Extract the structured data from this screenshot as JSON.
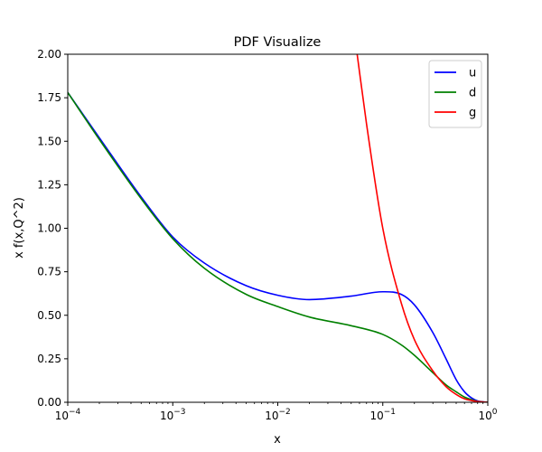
{
  "chart_data": {
    "type": "line",
    "title": "PDF Visualize",
    "xlabel": "x",
    "ylabel": "x f(x,Q^2)",
    "xscale": "log",
    "xlim": [
      0.0001,
      1
    ],
    "ylim": [
      0,
      2.0
    ],
    "grid": false,
    "legend_position": "top-right",
    "x_ticks": [
      {
        "value": 0.0001,
        "base": "10",
        "exp": "−4"
      },
      {
        "value": 0.001,
        "base": "10",
        "exp": "−3"
      },
      {
        "value": 0.01,
        "base": "10",
        "exp": "−2"
      },
      {
        "value": 0.1,
        "base": "10",
        "exp": "−1"
      },
      {
        "value": 1,
        "base": "10",
        "exp": "0"
      }
    ],
    "y_ticks": [
      "0.00",
      "0.25",
      "0.50",
      "0.75",
      "1.00",
      "1.25",
      "1.50",
      "1.75",
      "2.00"
    ],
    "series": [
      {
        "name": "u",
        "color": "#0000ff",
        "points": [
          [
            0.0001,
            1.78
          ],
          [
            0.0002,
            1.52
          ],
          [
            0.0005,
            1.18
          ],
          [
            0.001,
            0.95
          ],
          [
            0.002,
            0.8
          ],
          [
            0.005,
            0.67
          ],
          [
            0.01,
            0.615
          ],
          [
            0.02,
            0.59
          ],
          [
            0.05,
            0.61
          ],
          [
            0.1,
            0.635
          ],
          [
            0.15,
            0.62
          ],
          [
            0.2,
            0.56
          ],
          [
            0.3,
            0.4
          ],
          [
            0.4,
            0.25
          ],
          [
            0.5,
            0.13
          ],
          [
            0.6,
            0.06
          ],
          [
            0.7,
            0.025
          ],
          [
            0.8,
            0.008
          ],
          [
            1.0,
            0.0
          ]
        ]
      },
      {
        "name": "d",
        "color": "#008000",
        "points": [
          [
            0.0001,
            1.78
          ],
          [
            0.0002,
            1.51
          ],
          [
            0.0005,
            1.17
          ],
          [
            0.001,
            0.94
          ],
          [
            0.002,
            0.77
          ],
          [
            0.005,
            0.62
          ],
          [
            0.01,
            0.55
          ],
          [
            0.02,
            0.49
          ],
          [
            0.05,
            0.44
          ],
          [
            0.1,
            0.39
          ],
          [
            0.15,
            0.33
          ],
          [
            0.2,
            0.27
          ],
          [
            0.3,
            0.17
          ],
          [
            0.4,
            0.1
          ],
          [
            0.5,
            0.06
          ],
          [
            0.6,
            0.03
          ],
          [
            0.7,
            0.015
          ],
          [
            0.8,
            0.005
          ],
          [
            1.0,
            0.0
          ]
        ]
      },
      {
        "name": "g",
        "color": "#ff0000",
        "points": [
          [
            0.057,
            2.0
          ],
          [
            0.07,
            1.6
          ],
          [
            0.1,
            1.0
          ],
          [
            0.15,
            0.57
          ],
          [
            0.2,
            0.36
          ],
          [
            0.3,
            0.18
          ],
          [
            0.4,
            0.09
          ],
          [
            0.5,
            0.045
          ],
          [
            0.6,
            0.02
          ],
          [
            0.7,
            0.01
          ],
          [
            0.8,
            0.004
          ],
          [
            1.0,
            0.0
          ]
        ]
      }
    ]
  }
}
